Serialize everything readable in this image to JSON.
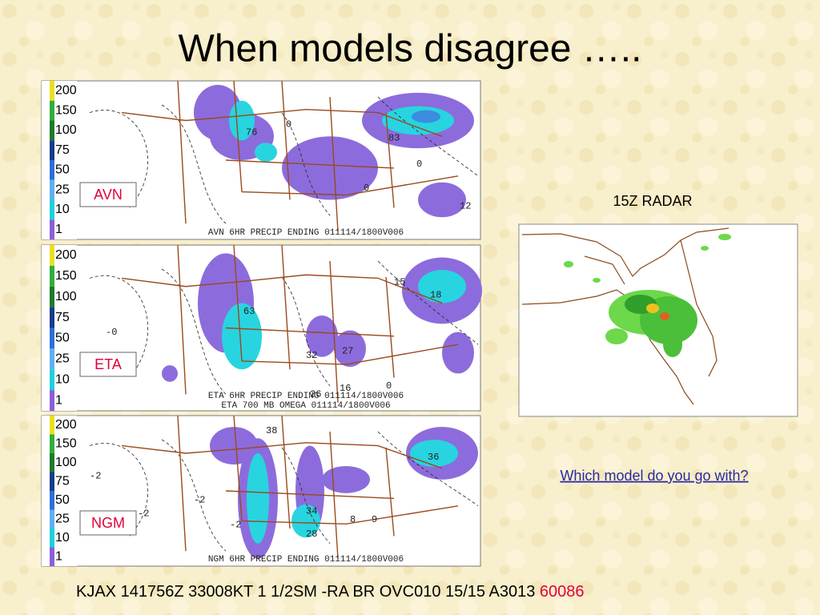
{
  "title": "When models disagree …..",
  "panels": [
    {
      "model": "AVN",
      "legend": [
        "200",
        "150",
        "100",
        "75",
        "50",
        "25",
        "10",
        "1"
      ],
      "caption": "AVN 6HR PRECIP ENDING 011114/1800V006",
      "labels": [
        "76",
        "0",
        "83",
        "0",
        "0",
        "12"
      ]
    },
    {
      "model": "ETA",
      "legend": [
        "200",
        "150",
        "100",
        "75",
        "50",
        "25",
        "10",
        "1"
      ],
      "caption": "ETA 6HR PRECIP ENDING 011114/1800V006",
      "subcaption": "ETA 700 MB OMEGA 011114/1800V006",
      "labels": [
        "-0",
        "63",
        "15",
        "18",
        "32",
        "27",
        "26",
        "16",
        "0"
      ]
    },
    {
      "model": "NGM",
      "legend": [
        "200",
        "150",
        "100",
        "75",
        "50",
        "25",
        "10",
        "1"
      ],
      "caption": "NGM 6HR PRECIP ENDING 011114/1800V006",
      "labels": [
        "-2",
        "-2",
        "-2",
        "-2",
        "38",
        "34",
        "28",
        "8",
        "9",
        "36"
      ]
    }
  ],
  "radar": {
    "caption": "15Z RADAR"
  },
  "question": "Which model do you go with?",
  "observation": {
    "text": "KJAX 141756Z 33008KT 1 1/2SM -RA BR OVC010 15/15 A3013",
    "highlight": "60086"
  }
}
